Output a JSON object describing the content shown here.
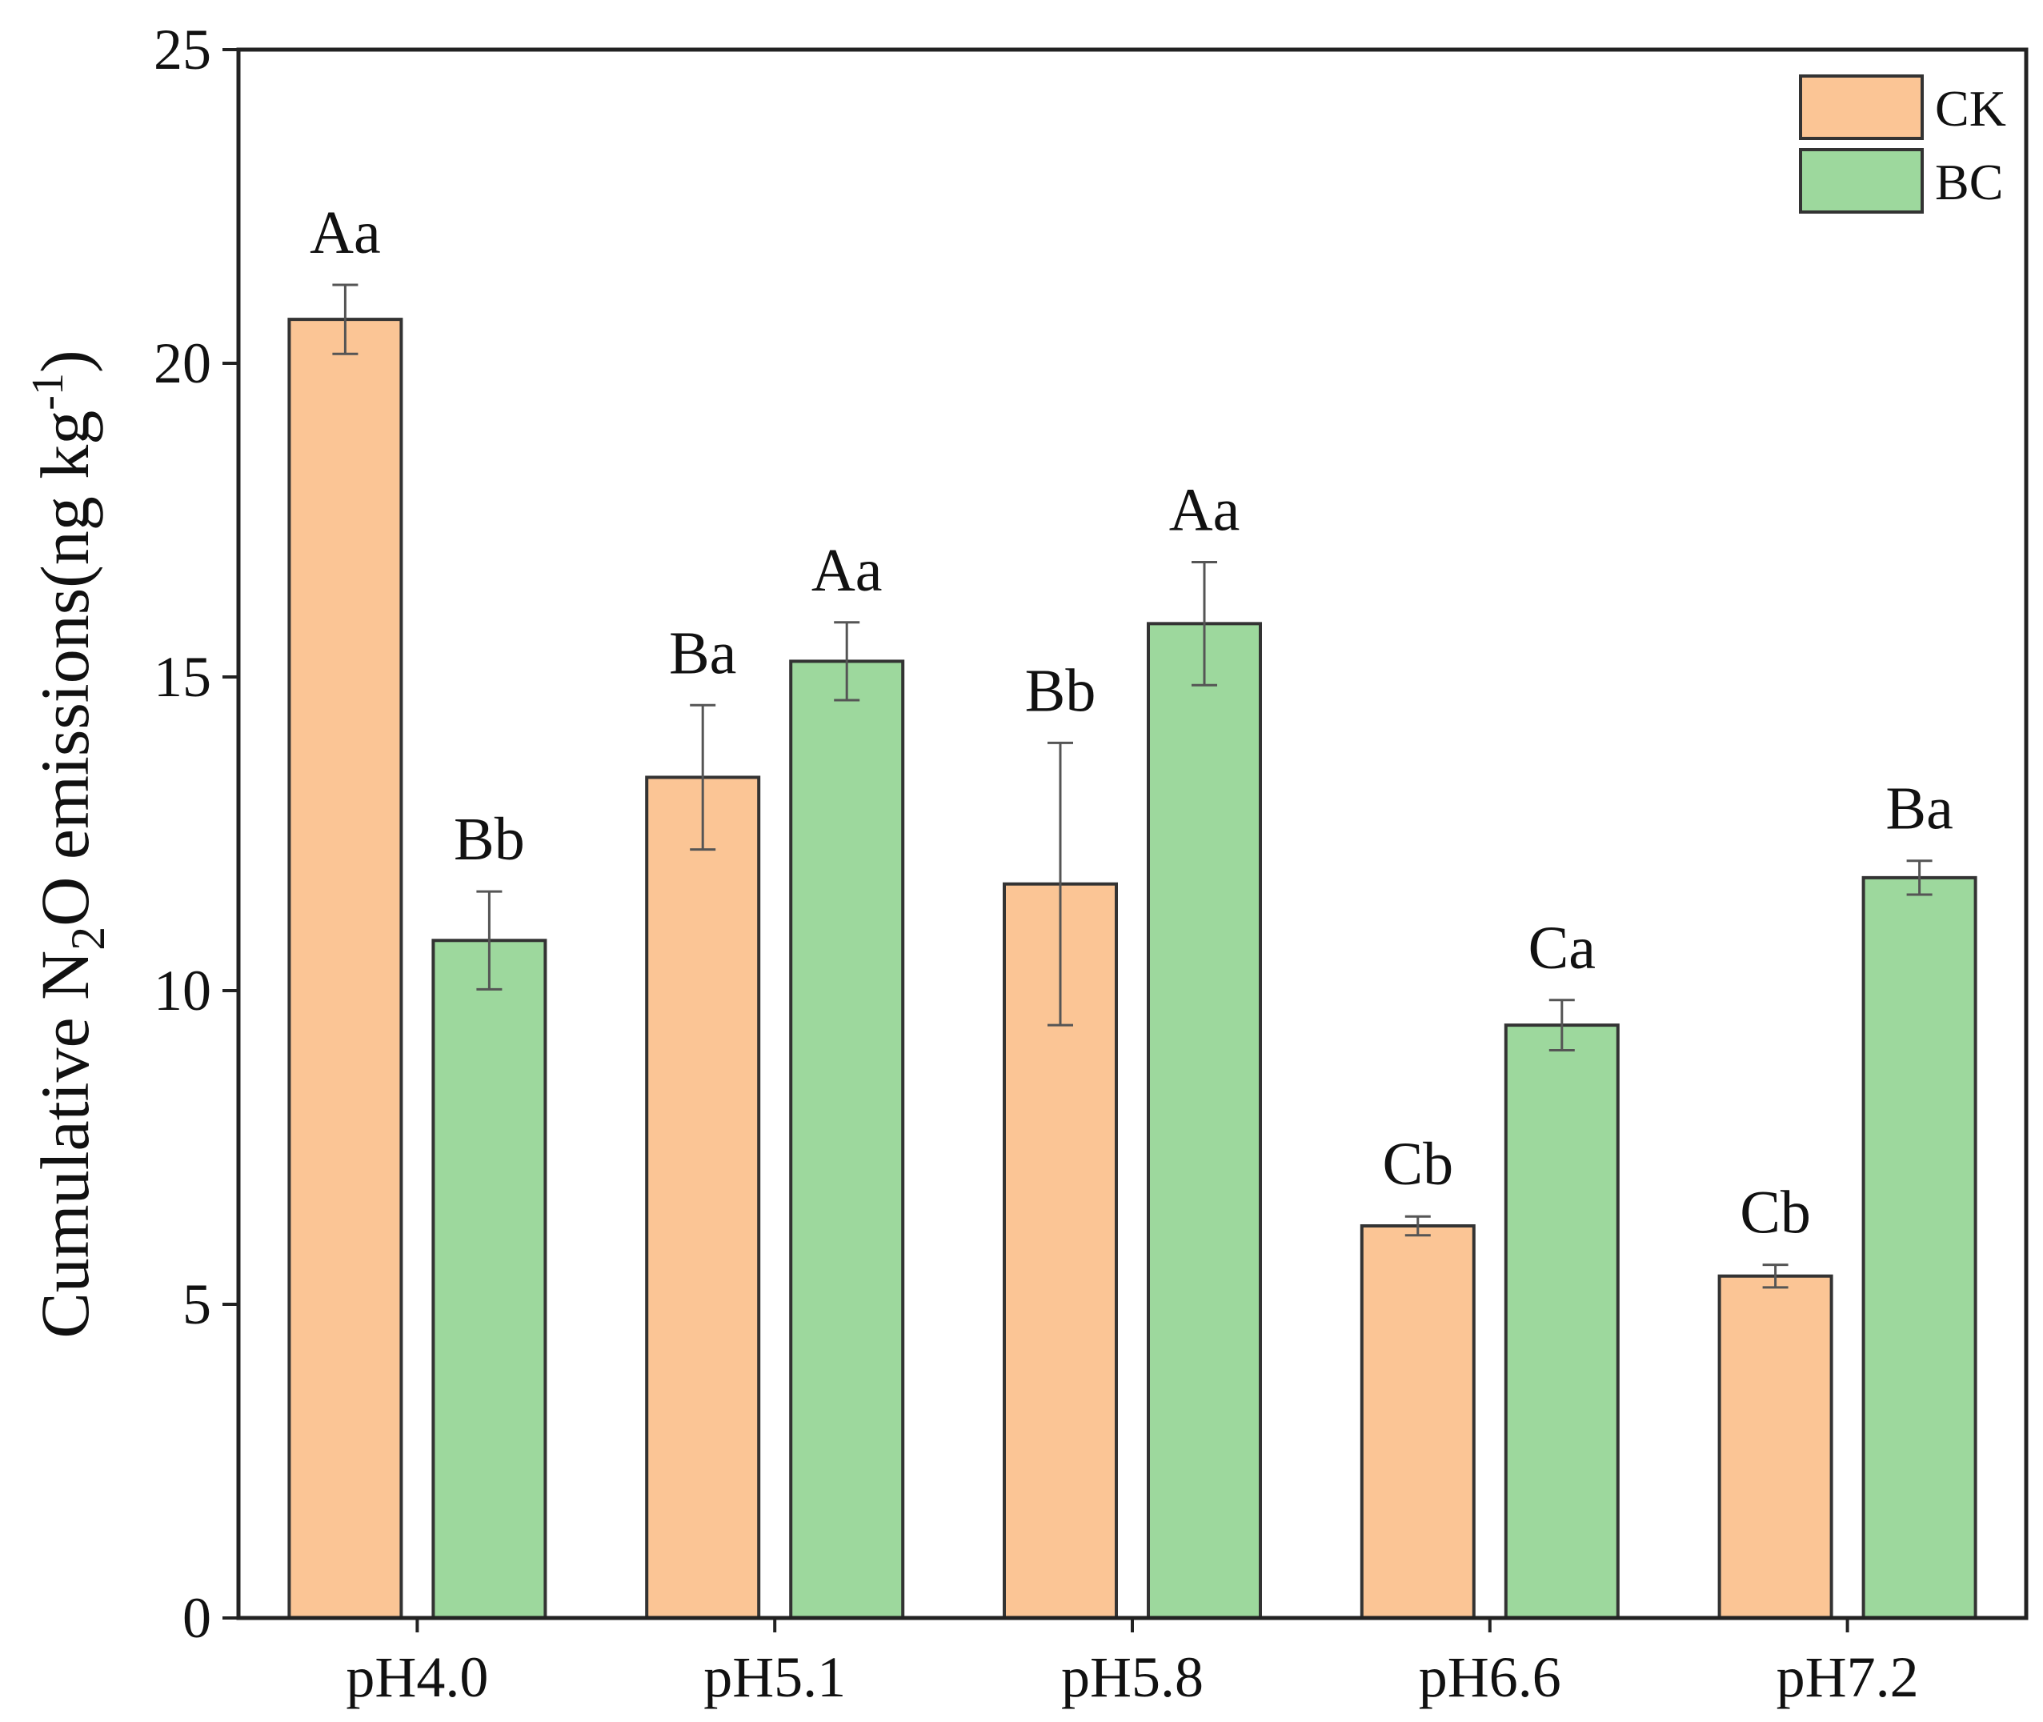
{
  "chart_data": {
    "type": "bar",
    "title": "",
    "xlabel": "",
    "ylabel": {
      "prefix": "Cumulative N",
      "sub": "2",
      "middle": "O emissions(ng kg",
      "sup": "-1",
      "suffix": ")"
    },
    "ylim": [
      0,
      25
    ],
    "yticks": [
      "0",
      "5",
      "10",
      "15",
      "20",
      "25"
    ],
    "categories": [
      "pH4.0",
      "pH5.1",
      "pH5.8",
      "pH6.6",
      "pH7.2"
    ],
    "legend_position": "top-right",
    "series": [
      {
        "name": "CK",
        "color": "#FBC595",
        "values": [
          20.7,
          13.4,
          11.7,
          6.25,
          5.45
        ],
        "errors": [
          0.55,
          1.15,
          2.25,
          0.15,
          0.18
        ],
        "labels": [
          "Aa",
          "Ba",
          "Bb",
          "Cb",
          "Cb"
        ]
      },
      {
        "name": "BC",
        "color": "#9DD89D",
        "values": [
          10.8,
          15.25,
          15.85,
          9.45,
          11.8
        ],
        "errors": [
          0.78,
          0.62,
          0.98,
          0.4,
          0.27
        ],
        "labels": [
          "Bb",
          "Aa",
          "Aa",
          "Ca",
          "Ba"
        ]
      }
    ]
  }
}
